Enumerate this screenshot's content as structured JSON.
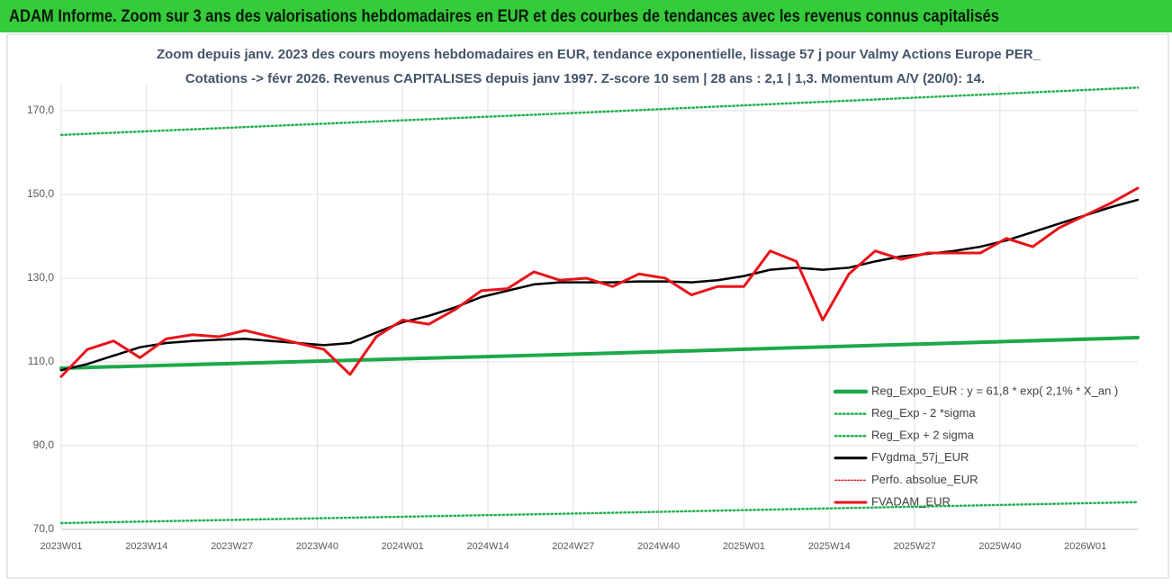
{
  "chart_data": {
    "type": "line",
    "title": "ADAM Informe. Zoom sur 3 ans des valorisations hebdomadaires en EUR et des courbes de tendances avec les revenus connus capitalisés",
    "subtitle": [
      "Zoom depuis janv. 2023 des cours moyens hebdomadaires en EUR, tendance exponentielle, lissage 57 j pour Valmy Actions Europe PER_",
      "Cotations -> févr 2026. Revenus CAPITALISES depuis janv 1997. Z-score 10 sem | 28 ans : 2,1 | 1,3. Momentum A/V (20/0): 14."
    ],
    "x": [
      0,
      4,
      8,
      12,
      16,
      20,
      24,
      28,
      32,
      36,
      40,
      44,
      48,
      52,
      56,
      60,
      64,
      68,
      72,
      76,
      80,
      84,
      88,
      92,
      96,
      100,
      104,
      108,
      112,
      116,
      120,
      124,
      128,
      132,
      136,
      140,
      144,
      148,
      152,
      156,
      160,
      164
    ],
    "xlim": [
      0,
      164
    ],
    "xticks": [
      {
        "value": 0,
        "label": "2023W01"
      },
      {
        "value": 13,
        "label": "2023W14"
      },
      {
        "value": 26,
        "label": "2023W27"
      },
      {
        "value": 39,
        "label": "2023W40"
      },
      {
        "value": 52,
        "label": "2024W01"
      },
      {
        "value": 65,
        "label": "2024W14"
      },
      {
        "value": 78,
        "label": "2024W27"
      },
      {
        "value": 91,
        "label": "2024W40"
      },
      {
        "value": 104,
        "label": "2025W01"
      },
      {
        "value": 117,
        "label": "2025W14"
      },
      {
        "value": 130,
        "label": "2025W27"
      },
      {
        "value": 143,
        "label": "2025W40"
      },
      {
        "value": 156,
        "label": "2026W01"
      }
    ],
    "ylim": [
      70,
      176
    ],
    "yticks": [
      {
        "value": 70,
        "label": "70,0"
      },
      {
        "value": 90,
        "label": "90,0"
      },
      {
        "value": 110,
        "label": "110,0"
      },
      {
        "value": 130,
        "label": "130,0"
      },
      {
        "value": 150,
        "label": "150,0"
      },
      {
        "value": 170,
        "label": "170,0"
      }
    ],
    "grid": true,
    "legend": "lower right",
    "series": [
      {
        "name": "Reg_Expo_EUR : y = 61,8 * exp( 2,1% *  X_an )",
        "color": "#1ea84a",
        "style": "solid",
        "x": [
          0,
          82,
          164
        ],
        "values": [
          108.5,
          112.0,
          115.8
        ]
      },
      {
        "name": "Reg_Exp - 2 *sigma",
        "color": "#22b14c",
        "style": "dotted",
        "x": [
          0,
          82,
          164
        ],
        "values": [
          71.5,
          73.9,
          76.5
        ]
      },
      {
        "name": "Reg_Exp + 2 sigma",
        "color": "#22b14c",
        "style": "dotted",
        "x": [
          0,
          82,
          164
        ],
        "values": [
          164.2,
          169.7,
          175.5
        ]
      },
      {
        "name": "FVgdma_57j_EUR",
        "color": "#000000",
        "style": "solid",
        "values": [
          108,
          109.5,
          111.5,
          113.5,
          114.5,
          115,
          115.3,
          115.5,
          115,
          114.5,
          114,
          114.5,
          117,
          119.5,
          121,
          123,
          125.5,
          127,
          128.5,
          129,
          129,
          129,
          129.2,
          129.2,
          129,
          129.5,
          130.5,
          132,
          132.5,
          132,
          132.5,
          134,
          135.2,
          135.8,
          136.5,
          137.5,
          139,
          141,
          143,
          145,
          147,
          148.7
        ]
      },
      {
        "name": "Perfo. absolue_EUR",
        "color": "#e8141b",
        "style": "dotted-thin",
        "values": [
          106.5,
          113,
          115,
          111,
          115.5,
          116.5,
          116,
          117.5,
          116,
          114.5,
          113,
          107,
          116,
          120,
          119,
          122.5,
          127,
          127.5,
          131.5,
          129.5,
          130,
          128,
          131,
          130,
          126,
          128,
          128,
          136.5,
          134,
          120,
          131,
          136.5,
          134.5,
          136,
          136,
          136,
          139.5,
          137.5,
          142,
          145,
          148,
          151.5
        ]
      },
      {
        "name": "FVADAM_EUR",
        "color": "#e8141b",
        "style": "solid",
        "values": [
          106.5,
          113,
          115,
          111,
          115.5,
          116.5,
          116,
          117.5,
          116,
          114.5,
          113,
          107,
          116,
          120,
          119,
          122.5,
          127,
          127.5,
          131.5,
          129.5,
          130,
          128,
          131,
          130,
          126,
          128,
          128,
          136.5,
          134,
          120,
          131,
          136.5,
          134.5,
          136,
          136,
          136,
          139.5,
          137.5,
          142,
          145,
          148,
          151.5
        ]
      }
    ]
  }
}
